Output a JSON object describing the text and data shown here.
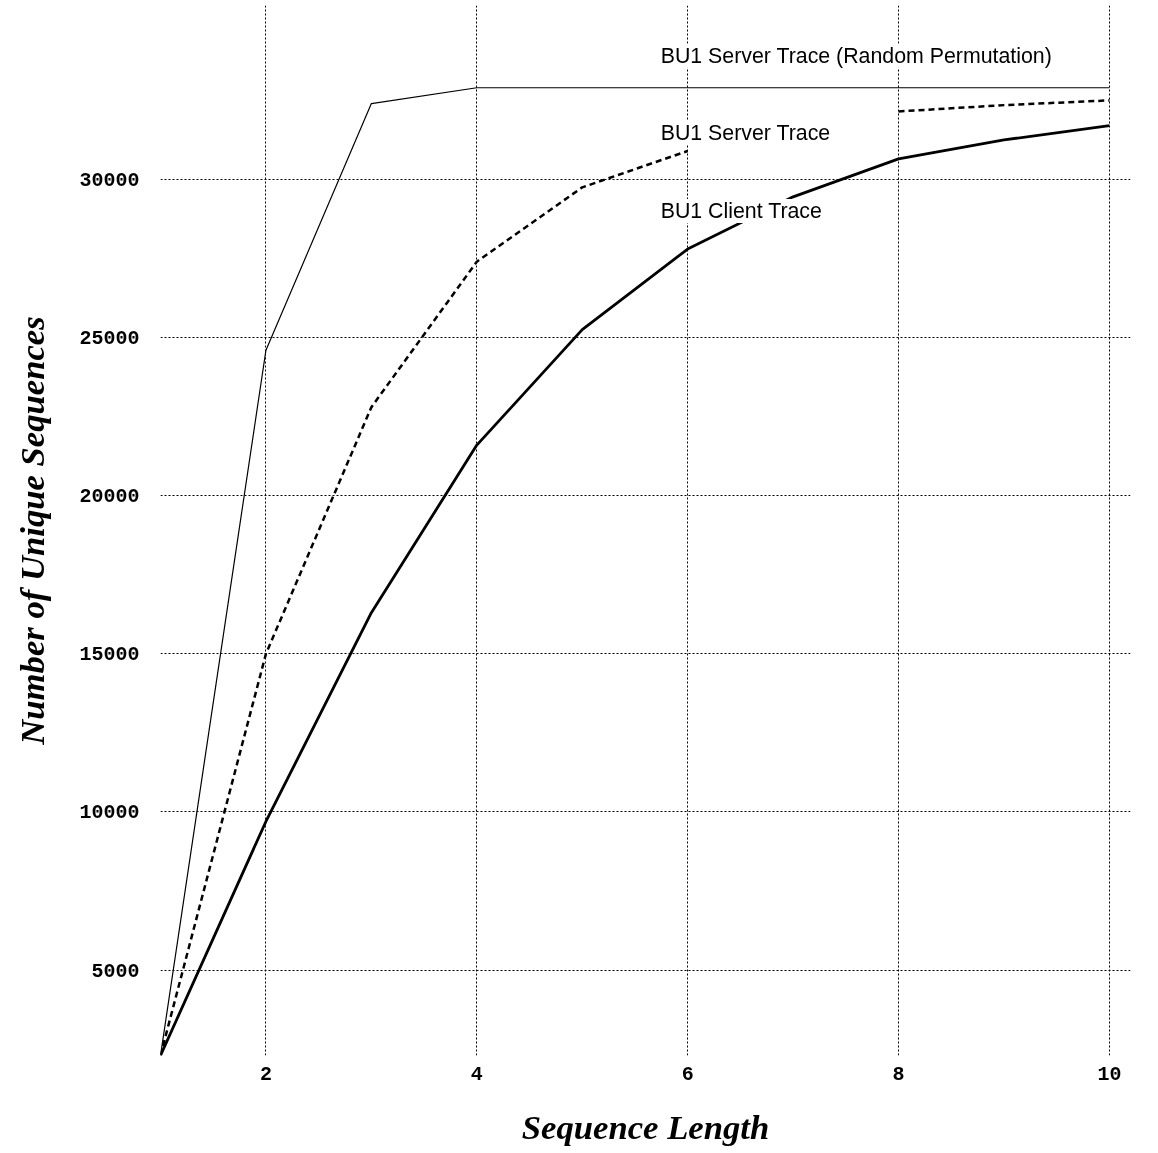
{
  "chart_data": {
    "type": "line",
    "xlabel": "Sequence Length",
    "ylabel": "Number of Unique Sequences",
    "x": [
      1,
      2,
      3,
      4,
      5,
      6,
      7,
      8,
      9,
      10
    ],
    "xlim": [
      1,
      10.2
    ],
    "ylim": [
      2300,
      35500
    ],
    "xticks": [
      2,
      4,
      6,
      8,
      10
    ],
    "yticks": [
      5000,
      10000,
      15000,
      20000,
      25000,
      30000
    ],
    "grid": true,
    "marker": "none",
    "series": [
      {
        "name": "BU1 Server Trace (Random Permutation)",
        "color": "#000000",
        "line_style": "solid",
        "values": [
          2300,
          24600,
          32400,
          32900,
          32900,
          32900,
          32900,
          32900,
          32900,
          32900
        ]
      },
      {
        "name": "BU1 Server Trace",
        "color": "#000000",
        "line_style": "dashed",
        "values": [
          2300,
          15000,
          22800,
          27400,
          29750,
          30900,
          null,
          32150,
          32350,
          32500
        ]
      },
      {
        "name": "BU1 Client Trace",
        "color": "#000000",
        "line_style": "solid",
        "values": [
          2300,
          9700,
          16300,
          21600,
          25250,
          27800,
          29450,
          30650,
          31250,
          31700
        ]
      }
    ]
  }
}
